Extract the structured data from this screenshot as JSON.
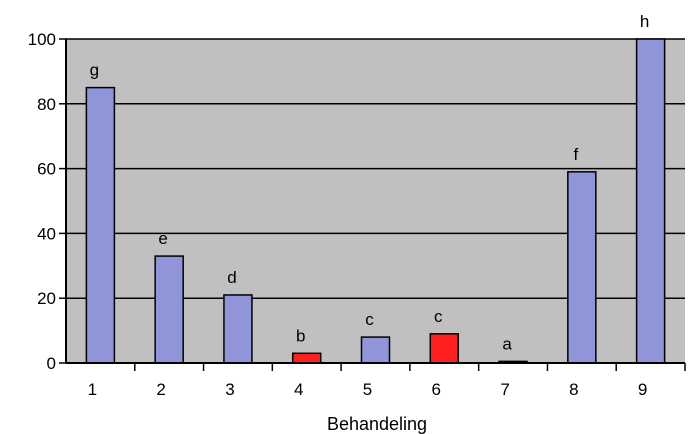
{
  "chart_data": {
    "type": "bar",
    "title": "",
    "xlabel": "Behandeling",
    "ylabel": "",
    "categories": [
      "1",
      "2",
      "3",
      "4",
      "5",
      "6",
      "7",
      "8",
      "9"
    ],
    "values": [
      85,
      33,
      21,
      3,
      8,
      9,
      0.5,
      59,
      100
    ],
    "letters": [
      "g",
      "e",
      "d",
      "b",
      "c",
      "c",
      "a",
      "f",
      "h"
    ],
    "bar_colors": [
      "#8f95d8",
      "#8f95d8",
      "#8f95d8",
      "#ff2020",
      "#8f95d8",
      "#ff2020",
      "#8f95d8",
      "#8f95d8",
      "#8f95d8"
    ],
    "y_ticks": [
      "0",
      "20",
      "40",
      "60",
      "80",
      "100"
    ],
    "ylim": [
      0,
      100
    ],
    "grid": true,
    "legend": "none",
    "plot_background": "#c0c0c0"
  }
}
